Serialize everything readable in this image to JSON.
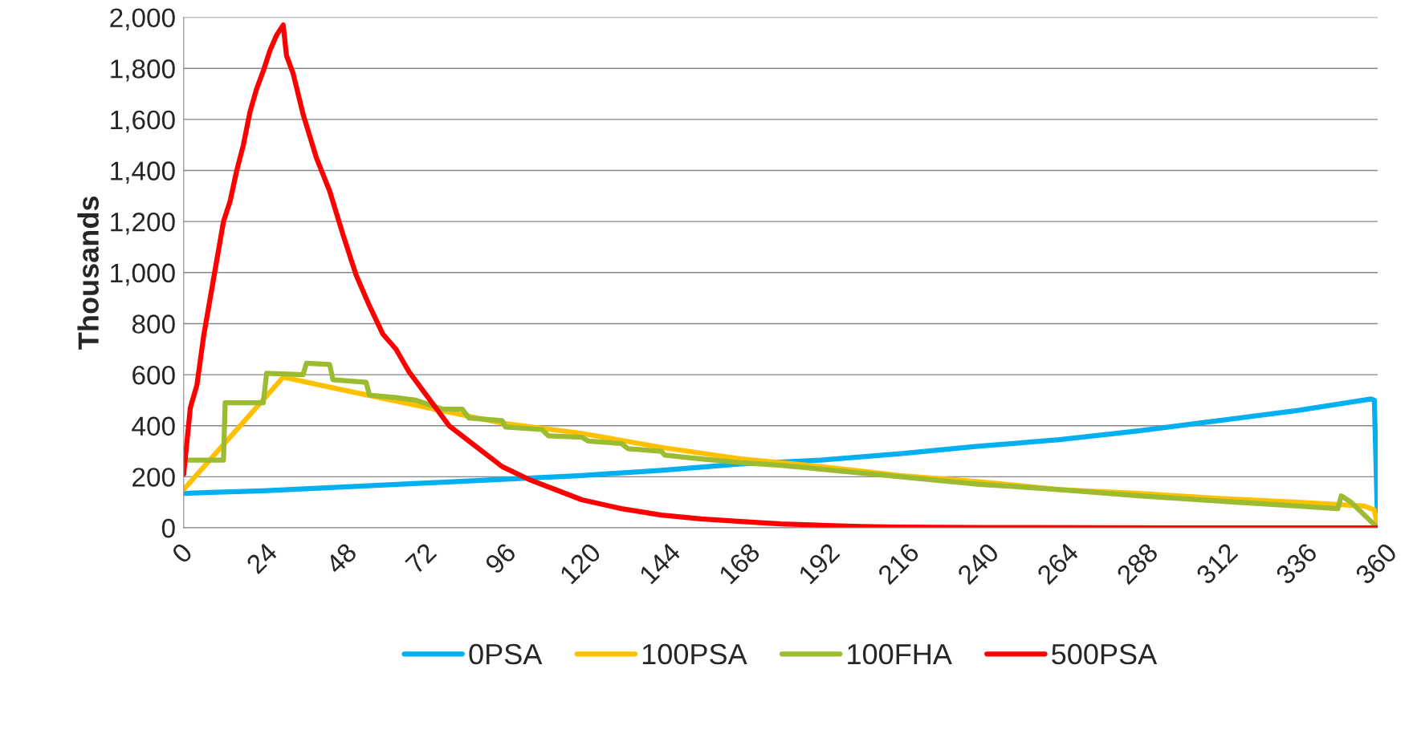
{
  "chart_data": {
    "type": "line",
    "ylabel": "Thousands",
    "xlim": [
      0,
      360
    ],
    "xticks": [
      0,
      24,
      48,
      72,
      96,
      120,
      144,
      168,
      192,
      216,
      240,
      264,
      288,
      312,
      336,
      360
    ],
    "ylim": [
      0,
      2000
    ],
    "yticks": [
      {
        "value": 0,
        "label": "0"
      },
      {
        "value": 200,
        "label": "200"
      },
      {
        "value": 400,
        "label": "400"
      },
      {
        "value": 600,
        "label": "600"
      },
      {
        "value": 800,
        "label": "800"
      },
      {
        "value": 1000,
        "label": "1,000"
      },
      {
        "value": 1200,
        "label": "1,200"
      },
      {
        "value": 1400,
        "label": "1,400"
      },
      {
        "value": 1600,
        "label": "1,600"
      },
      {
        "value": 1800,
        "label": "1,800"
      },
      {
        "value": 2000,
        "label": "2,000"
      }
    ],
    "grid": "y",
    "legend": "bottom",
    "marker": "none",
    "line_style": "solid",
    "series": [
      {
        "name": "0PSA",
        "color": "#00b0f0",
        "x": [
          0,
          24,
          48,
          72,
          96,
          120,
          144,
          168,
          192,
          216,
          240,
          264,
          288,
          312,
          336,
          358,
          359,
          360
        ],
        "values": [
          135,
          145,
          160,
          175,
          190,
          205,
          225,
          250,
          265,
          290,
          320,
          345,
          380,
          420,
          460,
          505,
          500,
          0
        ]
      },
      {
        "name": "100PSA",
        "color": "#ffc000",
        "x": [
          0,
          30,
          48,
          72,
          96,
          120,
          144,
          168,
          192,
          216,
          240,
          264,
          288,
          312,
          336,
          356,
          359,
          360
        ],
        "values": [
          150,
          590,
          540,
          475,
          410,
          370,
          315,
          270,
          240,
          205,
          180,
          150,
          135,
          115,
          100,
          85,
          70,
          0
        ]
      },
      {
        "name": "100FHA",
        "color": "#9bbb30",
        "x": [
          0,
          12,
          12.5,
          24,
          25,
          36,
          37,
          44,
          45,
          55,
          56,
          64,
          70,
          78,
          84,
          86,
          96,
          97,
          108,
          110,
          120,
          122,
          132,
          134,
          144,
          145,
          156,
          160,
          168,
          180,
          192,
          204,
          216,
          228,
          240,
          264,
          288,
          312,
          336,
          348,
          349,
          352,
          360
        ],
        "values": [
          265,
          265,
          490,
          490,
          605,
          600,
          645,
          640,
          580,
          570,
          520,
          510,
          500,
          465,
          465,
          430,
          420,
          395,
          385,
          360,
          355,
          340,
          330,
          310,
          300,
          285,
          270,
          265,
          255,
          245,
          230,
          215,
          200,
          185,
          170,
          150,
          125,
          105,
          85,
          75,
          125,
          100,
          0
        ]
      },
      {
        "name": "500PSA",
        "color": "#ff0000",
        "x": [
          0,
          2,
          4,
          6,
          8,
          10,
          12,
          14,
          16,
          18,
          20,
          22,
          24,
          26,
          28,
          30,
          31,
          33,
          36,
          40,
          44,
          48,
          52,
          56,
          60,
          64,
          68,
          72,
          76,
          80,
          88,
          96,
          104,
          112,
          120,
          132,
          144,
          156,
          168,
          180,
          192,
          204,
          216,
          240,
          300,
          360
        ],
        "values": [
          210,
          470,
          560,
          750,
          900,
          1050,
          1200,
          1280,
          1400,
          1500,
          1630,
          1720,
          1790,
          1870,
          1930,
          1970,
          1850,
          1780,
          1620,
          1450,
          1320,
          1150,
          990,
          870,
          760,
          700,
          610,
          540,
          470,
          400,
          320,
          240,
          190,
          150,
          110,
          75,
          50,
          35,
          25,
          15,
          10,
          5,
          3,
          1,
          0,
          0
        ]
      }
    ]
  }
}
